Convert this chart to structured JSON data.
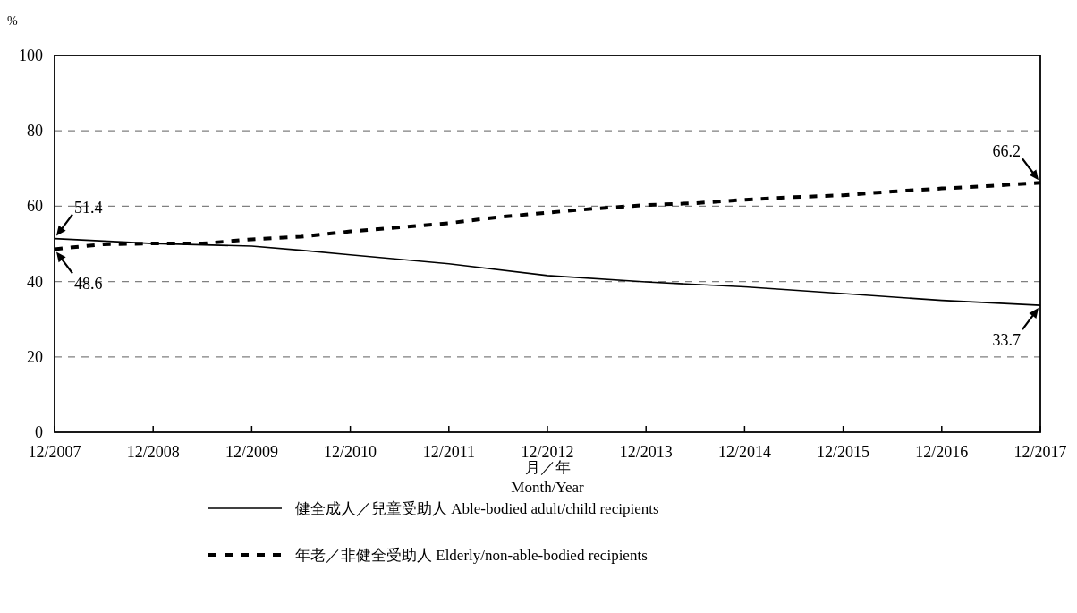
{
  "chart_data": {
    "type": "line",
    "ylabel": "%",
    "xlabel": "月／年\nMonth/Year",
    "x": [
      "2007-12",
      "2008-06",
      "2008-12",
      "2009-06",
      "2009-12",
      "2010-06",
      "2010-12",
      "2011-06",
      "2011-12",
      "2012-06",
      "2012-12",
      "2013-06",
      "2013-12",
      "2014-06",
      "2014-12",
      "2015-06",
      "2015-12",
      "2016-06",
      "2016-12",
      "2017-06",
      "2017-12"
    ],
    "series": [
      {
        "name": "健全成人／兒童受助人 Able-bodied adult/child recipients",
        "color": "#000000",
        "line_style": "solid",
        "x": [
          "2007-12",
          "2008-12",
          "2009-12",
          "2010-06",
          "2010-12",
          "2011-12",
          "2012-12",
          "2013-12",
          "2014-12",
          "2015-12",
          "2016-12",
          "2017-12"
        ],
        "values": [
          51.4,
          50.1,
          49.4,
          48.3,
          47.1,
          44.7,
          41.6,
          39.9,
          38.6,
          36.8,
          35.0,
          33.7
        ],
        "value_labels": [
          "51.4",
          null,
          null,
          null,
          null,
          null,
          null,
          null,
          null,
          null,
          null,
          "33.7"
        ]
      },
      {
        "name": "年老／非健全受助人 Elderly/non-able-bodied recipients",
        "color": "#000000",
        "line_style": "dashed",
        "values": [
          48.6,
          49.9,
          50.1,
          50.1,
          51.2,
          51.9,
          53.3,
          54.4,
          55.5,
          57.1,
          58.3,
          59.4,
          60.3,
          60.8,
          61.7,
          62.4,
          62.9,
          63.9,
          64.7,
          65.4,
          66.2
        ],
        "value_labels": [
          "48.6",
          null,
          null,
          null,
          null,
          null,
          null,
          null,
          null,
          null,
          null,
          null,
          null,
          null,
          null,
          null,
          null,
          null,
          null,
          null,
          "66.2"
        ]
      }
    ],
    "xlim": [
      "2007-12",
      "2017-12"
    ],
    "xticks": [
      {
        "value": "2007-12",
        "label": "12/2007"
      },
      {
        "value": "2008-12",
        "label": "12/2008"
      },
      {
        "value": "2009-12",
        "label": "12/2009"
      },
      {
        "value": "2010-12",
        "label": "12/2010"
      },
      {
        "value": "2011-12",
        "label": "12/2011"
      },
      {
        "value": "2012-12",
        "label": "12/2012"
      },
      {
        "value": "2013-12",
        "label": "12/2013"
      },
      {
        "value": "2014-12",
        "label": "12/2014"
      },
      {
        "value": "2015-12",
        "label": "12/2015"
      },
      {
        "value": "2016-12",
        "label": "12/2016"
      },
      {
        "value": "2017-12",
        "label": "12/2017"
      }
    ],
    "ylim": [
      0,
      100
    ],
    "yticks": [
      0,
      20,
      40,
      60,
      80,
      100
    ],
    "grid": "y",
    "legend": "bottom"
  }
}
